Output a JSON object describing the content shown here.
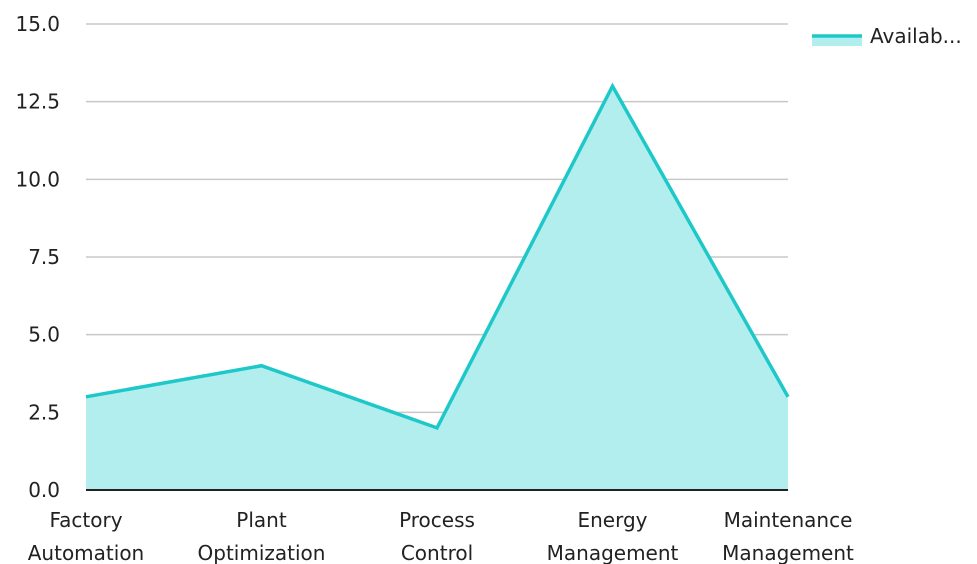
{
  "chart_data": {
    "type": "area",
    "categories": [
      "Factory Automation",
      "Plant Optimization",
      "Process Control",
      "Energy Management",
      "Maintenance Management"
    ],
    "category_lines": [
      [
        "Factory",
        "Automation"
      ],
      [
        "Plant",
        "Optimization"
      ],
      [
        "Process",
        "Control"
      ],
      [
        "Energy",
        "Management"
      ],
      [
        "Maintenance",
        "Management"
      ]
    ],
    "series": [
      {
        "name": "Availab...",
        "values": [
          3,
          4,
          2,
          13,
          3
        ]
      }
    ],
    "ylim": [
      0,
      15
    ],
    "yticks": [
      "0.0",
      "2.5",
      "5.0",
      "7.5",
      "10.0",
      "12.5",
      "15.0"
    ],
    "ytick_values": [
      0,
      2.5,
      5,
      7.5,
      10,
      12.5,
      15
    ],
    "grid": true,
    "legend_position": "top-right",
    "colors": {
      "line": "#1ec8c8",
      "fill": "#b2eeee",
      "grid": "#c8c8c8",
      "axis": "#222222"
    }
  }
}
